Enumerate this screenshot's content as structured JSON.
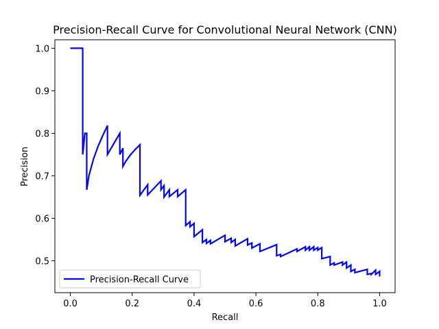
{
  "chart_data": {
    "type": "line",
    "title": "Precision-Recall Curve for Convolutional Neural Network (CNN)",
    "xlabel": "Recall",
    "ylabel": "Precision",
    "xlim": [
      -0.05,
      1.05
    ],
    "ylim": [
      0.425,
      1.02
    ],
    "xticks": [
      0.0,
      0.2,
      0.4,
      0.6,
      0.8,
      1.0
    ],
    "xtick_labels": [
      "0.0",
      "0.2",
      "0.4",
      "0.6",
      "0.8",
      "1.0"
    ],
    "yticks": [
      0.5,
      0.6,
      0.7,
      0.8,
      0.9,
      1.0
    ],
    "ytick_labels": [
      "0.5",
      "0.6",
      "0.7",
      "0.8",
      "0.9",
      "1.0"
    ],
    "grid": false,
    "legend": {
      "position": "lower left",
      "entries": [
        "Precision-Recall Curve"
      ]
    },
    "series": [
      {
        "name": "Precision-Recall Curve",
        "color": "#0000ff",
        "x": [
          0.0,
          0.04,
          0.04,
          0.047,
          0.053,
          0.053,
          0.06,
          0.075,
          0.09,
          0.105,
          0.12,
          0.12,
          0.16,
          0.16,
          0.17,
          0.17,
          0.18,
          0.195,
          0.21,
          0.225,
          0.225,
          0.25,
          0.25,
          0.293,
          0.293,
          0.303,
          0.303,
          0.32,
          0.32,
          0.347,
          0.347,
          0.373,
          0.373,
          0.387,
          0.387,
          0.4,
          0.4,
          0.427,
          0.427,
          0.44,
          0.44,
          0.453,
          0.453,
          0.5,
          0.5,
          0.52,
          0.52,
          0.533,
          0.533,
          0.573,
          0.573,
          0.587,
          0.587,
          0.613,
          0.613,
          0.667,
          0.667,
          0.68,
          0.68,
          0.733,
          0.733,
          0.76,
          0.76,
          0.773,
          0.773,
          0.787,
          0.787,
          0.8,
          0.8,
          0.813,
          0.813,
          0.84,
          0.84,
          0.853,
          0.853,
          0.88,
          0.88,
          0.893,
          0.893,
          0.907,
          0.907,
          0.92,
          0.92,
          0.96,
          0.96,
          0.973,
          0.973,
          0.987,
          0.987,
          1.0,
          1.0
        ],
        "y": [
          1.0,
          1.0,
          0.75,
          0.8,
          0.8,
          0.667,
          0.7,
          0.74,
          0.77,
          0.795,
          0.818,
          0.75,
          0.8,
          0.75,
          0.765,
          0.722,
          0.735,
          0.75,
          0.762,
          0.773,
          0.654,
          0.679,
          0.655,
          0.688,
          0.667,
          0.677,
          0.65,
          0.667,
          0.651,
          0.667,
          0.651,
          0.667,
          0.583,
          0.592,
          0.58,
          0.588,
          0.557,
          0.573,
          0.543,
          0.55,
          0.541,
          0.548,
          0.54,
          0.56,
          0.545,
          0.553,
          0.543,
          0.55,
          0.535,
          0.552,
          0.537,
          0.542,
          0.53,
          0.54,
          0.522,
          0.538,
          0.512,
          0.515,
          0.51,
          0.528,
          0.522,
          0.533,
          0.525,
          0.533,
          0.525,
          0.533,
          0.525,
          0.531,
          0.525,
          0.531,
          0.505,
          0.51,
          0.49,
          0.495,
          0.49,
          0.497,
          0.49,
          0.497,
          0.483,
          0.49,
          0.475,
          0.48,
          0.472,
          0.48,
          0.468,
          0.47,
          0.468,
          0.478,
          0.468,
          0.475,
          0.463
        ]
      }
    ]
  }
}
